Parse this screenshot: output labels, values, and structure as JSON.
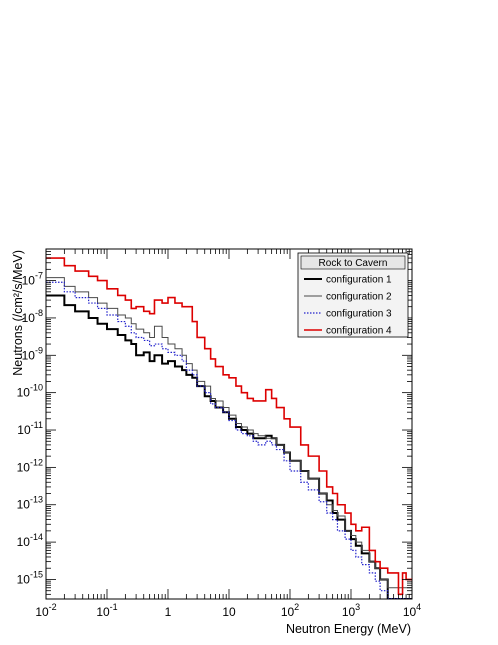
{
  "chart_data": {
    "type": "line",
    "step": true,
    "title": "",
    "xlabel": "Neutron Energy (MeV)",
    "ylabel": "Neutrons (/cm²/s/MeV)",
    "xscale": "log",
    "yscale": "log",
    "xlim": [
      0.01,
      10000
    ],
    "ylim": [
      3e-16,
      7e-07
    ],
    "x_ticks": [
      {
        "value": 0.01,
        "base": "10",
        "exp": "-2"
      },
      {
        "value": 0.1,
        "base": "10",
        "exp": "-1"
      },
      {
        "value": 1,
        "base": "1",
        "exp": ""
      },
      {
        "value": 10,
        "base": "10",
        "exp": ""
      },
      {
        "value": 100,
        "base": "10",
        "exp": "2"
      },
      {
        "value": 1000,
        "base": "10",
        "exp": "3"
      },
      {
        "value": 10000,
        "base": "10",
        "exp": "4"
      }
    ],
    "y_ticks": [
      {
        "value": 1e-15,
        "base": "10",
        "exp": "-15"
      },
      {
        "value": 1e-14,
        "base": "10",
        "exp": "-14"
      },
      {
        "value": 1e-13,
        "base": "10",
        "exp": "-13"
      },
      {
        "value": 1e-12,
        "base": "10",
        "exp": "-12"
      },
      {
        "value": 1e-11,
        "base": "10",
        "exp": "-11"
      },
      {
        "value": 1e-10,
        "base": "10",
        "exp": "-10"
      },
      {
        "value": 1e-09,
        "base": "10",
        "exp": "-9"
      },
      {
        "value": 1e-08,
        "base": "10",
        "exp": "-8"
      },
      {
        "value": 1e-07,
        "base": "10",
        "exp": "-7"
      }
    ],
    "grid": false,
    "legend": {
      "title": "Rock to Cavern",
      "position": "top-right"
    },
    "series": [
      {
        "name": "configuration 1",
        "color": "#000000",
        "style": "solid",
        "width": 2,
        "points": [
          [
            0.01,
            4e-08
          ],
          [
            0.02,
            2.2e-08
          ],
          [
            0.03,
            1.5e-08
          ],
          [
            0.05,
            1e-08
          ],
          [
            0.07,
            7e-09
          ],
          [
            0.1,
            5e-09
          ],
          [
            0.15,
            3.5e-09
          ],
          [
            0.2,
            2.5e-09
          ],
          [
            0.25,
            2e-09
          ],
          [
            0.3,
            1e-09
          ],
          [
            0.4,
            1.2e-09
          ],
          [
            0.5,
            7e-10
          ],
          [
            0.6,
            1e-09
          ],
          [
            0.8,
            6e-10
          ],
          [
            1,
            7e-10
          ],
          [
            1.3,
            5e-10
          ],
          [
            1.7,
            4e-10
          ],
          [
            2,
            3e-10
          ],
          [
            2.5,
            2.5e-10
          ],
          [
            3,
            1.5e-10
          ],
          [
            4,
            8e-11
          ],
          [
            5,
            6e-11
          ],
          [
            6,
            4e-11
          ],
          [
            8,
            3e-11
          ],
          [
            10,
            2e-11
          ],
          [
            13,
            1.2e-11
          ],
          [
            16,
            1e-11
          ],
          [
            20,
            8e-12
          ],
          [
            25,
            6e-12
          ],
          [
            30,
            6e-12
          ],
          [
            40,
            7e-12
          ],
          [
            50,
            6e-12
          ],
          [
            60,
            4e-12
          ],
          [
            80,
            2.5e-12
          ],
          [
            100,
            1.5e-12
          ],
          [
            150,
            8e-13
          ],
          [
            200,
            5e-13
          ],
          [
            300,
            2e-13
          ],
          [
            400,
            1.3e-13
          ],
          [
            500,
            6e-14
          ],
          [
            600,
            4e-14
          ],
          [
            800,
            2e-14
          ],
          [
            1000,
            1.2e-14
          ],
          [
            1200,
            8e-15
          ],
          [
            1500,
            5e-15
          ],
          [
            2000,
            3e-15
          ],
          [
            2500,
            2e-15
          ],
          [
            3000,
            1e-15
          ],
          [
            4000,
            3e-16
          ]
        ]
      },
      {
        "name": "configuration 2",
        "color": "#4a4a4a",
        "style": "solid",
        "width": 1,
        "points": [
          [
            0.01,
            1.2e-07
          ],
          [
            0.02,
            7e-08
          ],
          [
            0.03,
            5e-08
          ],
          [
            0.05,
            3.5e-08
          ],
          [
            0.07,
            2.5e-08
          ],
          [
            0.1,
            1.8e-08
          ],
          [
            0.15,
            1.2e-08
          ],
          [
            0.2,
            1e-08
          ],
          [
            0.25,
            7e-09
          ],
          [
            0.3,
            5e-09
          ],
          [
            0.4,
            4e-09
          ],
          [
            0.5,
            3e-09
          ],
          [
            0.6,
            6e-09
          ],
          [
            0.8,
            3e-09
          ],
          [
            1,
            2e-09
          ],
          [
            1.3,
            1.5e-09
          ],
          [
            1.7,
            1e-09
          ],
          [
            2,
            6e-10
          ],
          [
            2.5,
            4e-10
          ],
          [
            3,
            2e-10
          ],
          [
            4,
            1.5e-10
          ],
          [
            5,
            7e-11
          ],
          [
            6,
            6e-11
          ],
          [
            8,
            4e-11
          ],
          [
            10,
            2.5e-11
          ],
          [
            13,
            1.5e-11
          ],
          [
            16,
            1.2e-11
          ],
          [
            20,
            1e-11
          ],
          [
            25,
            8e-12
          ],
          [
            30,
            7e-12
          ],
          [
            40,
            6e-12
          ],
          [
            50,
            6e-12
          ],
          [
            60,
            4e-12
          ],
          [
            80,
            2.5e-12
          ],
          [
            100,
            1.5e-12
          ],
          [
            150,
            8e-13
          ],
          [
            200,
            5e-13
          ],
          [
            300,
            2e-13
          ],
          [
            400,
            1e-13
          ],
          [
            500,
            7e-14
          ],
          [
            600,
            5e-14
          ],
          [
            800,
            2e-14
          ],
          [
            1000,
            1.5e-14
          ],
          [
            1200,
            1e-14
          ],
          [
            1500,
            6e-15
          ],
          [
            2000,
            3e-15
          ],
          [
            2500,
            2e-15
          ],
          [
            3000,
            1e-15
          ],
          [
            4000,
            6e-16
          ]
        ]
      },
      {
        "name": "configuration 3",
        "color": "#2222cc",
        "style": "dotted",
        "width": 1.2,
        "points": [
          [
            0.01,
            9e-08
          ],
          [
            0.02,
            5e-08
          ],
          [
            0.03,
            3.5e-08
          ],
          [
            0.05,
            2.5e-08
          ],
          [
            0.07,
            1.8e-08
          ],
          [
            0.1,
            1.2e-08
          ],
          [
            0.15,
            8e-09
          ],
          [
            0.2,
            6e-09
          ],
          [
            0.25,
            4e-09
          ],
          [
            0.3,
            3e-09
          ],
          [
            0.4,
            2.5e-09
          ],
          [
            0.5,
            1.8e-09
          ],
          [
            0.6,
            2e-09
          ],
          [
            0.8,
            1.5e-09
          ],
          [
            1,
            1.2e-09
          ],
          [
            1.3,
            1e-09
          ],
          [
            1.7,
            7e-10
          ],
          [
            2,
            4e-10
          ],
          [
            2.5,
            3e-10
          ],
          [
            3,
            1.5e-10
          ],
          [
            4,
            1e-10
          ],
          [
            5,
            5e-11
          ],
          [
            6,
            4e-11
          ],
          [
            8,
            3e-11
          ],
          [
            10,
            1.8e-11
          ],
          [
            13,
            1e-11
          ],
          [
            16,
            8e-12
          ],
          [
            20,
            7e-12
          ],
          [
            25,
            5e-12
          ],
          [
            30,
            4e-12
          ],
          [
            40,
            5e-12
          ],
          [
            50,
            4e-12
          ],
          [
            60,
            3e-12
          ],
          [
            80,
            1.5e-12
          ],
          [
            100,
            8e-13
          ],
          [
            150,
            4e-13
          ],
          [
            200,
            2.5e-13
          ],
          [
            300,
            1.2e-13
          ],
          [
            400,
            6e-14
          ],
          [
            500,
            4e-14
          ],
          [
            600,
            2e-14
          ],
          [
            800,
            1.2e-14
          ],
          [
            1000,
            6e-15
          ],
          [
            1200,
            4e-15
          ],
          [
            1500,
            2.5e-15
          ],
          [
            2000,
            1.5e-15
          ],
          [
            2500,
            9e-16
          ],
          [
            3000,
            5e-16
          ],
          [
            4000,
            3e-16
          ]
        ]
      },
      {
        "name": "configuration 4",
        "color": "#dd0000",
        "style": "solid",
        "width": 1.6,
        "points": [
          [
            0.01,
            4e-07
          ],
          [
            0.02,
            2.5e-07
          ],
          [
            0.03,
            1.8e-07
          ],
          [
            0.05,
            1.3e-07
          ],
          [
            0.07,
            1e-07
          ],
          [
            0.1,
            6e-08
          ],
          [
            0.15,
            4e-08
          ],
          [
            0.2,
            3e-08
          ],
          [
            0.25,
            1.8e-08
          ],
          [
            0.3,
            2e-08
          ],
          [
            0.4,
            1.5e-08
          ],
          [
            0.5,
            1.3e-08
          ],
          [
            0.6,
            3e-08
          ],
          [
            0.8,
            2.5e-08
          ],
          [
            1,
            3.5e-08
          ],
          [
            1.3,
            2.5e-08
          ],
          [
            1.7,
            2e-08
          ],
          [
            2,
            2e-08
          ],
          [
            2.5,
            8e-09
          ],
          [
            3,
            3e-09
          ],
          [
            4,
            1.5e-09
          ],
          [
            5,
            8e-10
          ],
          [
            6,
            5e-10
          ],
          [
            8,
            3e-10
          ],
          [
            10,
            2.5e-10
          ],
          [
            13,
            1.5e-10
          ],
          [
            16,
            1e-10
          ],
          [
            20,
            7e-11
          ],
          [
            25,
            6e-11
          ],
          [
            30,
            6e-11
          ],
          [
            40,
            1.2e-10
          ],
          [
            50,
            7e-11
          ],
          [
            60,
            4e-11
          ],
          [
            80,
            2e-11
          ],
          [
            100,
            1.2e-11
          ],
          [
            150,
            4e-12
          ],
          [
            200,
            2e-12
          ],
          [
            300,
            8e-13
          ],
          [
            400,
            3e-13
          ],
          [
            500,
            2e-13
          ],
          [
            600,
            1e-13
          ],
          [
            800,
            6e-14
          ],
          [
            1000,
            3e-14
          ],
          [
            1200,
            2e-14
          ],
          [
            1500,
            2.5e-14
          ],
          [
            2000,
            6e-15
          ],
          [
            2500,
            3e-15
          ],
          [
            3000,
            2e-15
          ],
          [
            4000,
            1.5e-15
          ],
          [
            6000,
            4e-16
          ],
          [
            7000,
            1.5e-15
          ],
          [
            8000,
            1e-15
          ],
          [
            10000,
            1e-15
          ]
        ]
      }
    ]
  }
}
